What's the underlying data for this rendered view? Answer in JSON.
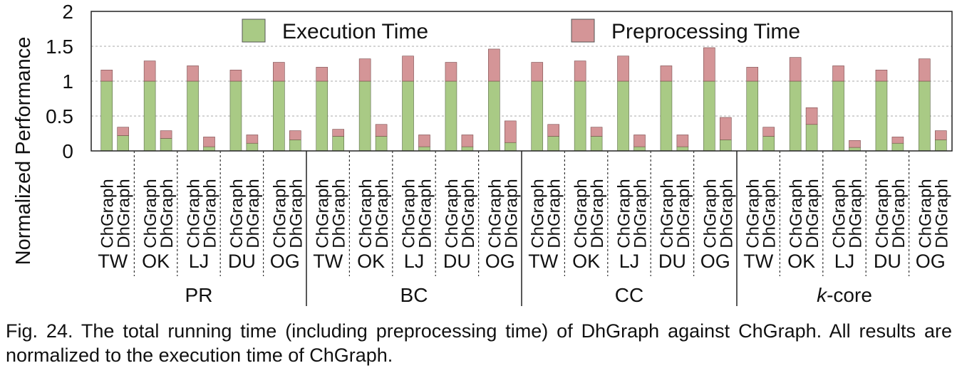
{
  "chart_data": {
    "type": "bar",
    "stacked": true,
    "ylabel": "Normalized Performance",
    "ylim": [
      0,
      2
    ],
    "yticks": [
      "0",
      "0.5",
      "1",
      "1.5",
      "2"
    ],
    "grid": "horizontal dashed at 0.5, 1, 1.5",
    "legend_position": "top",
    "colors": {
      "execution": "#a9ca85",
      "preprocessing": "#d49597"
    },
    "series_names": [
      "Execution Time",
      "Preprocessing Time"
    ],
    "algorithms": [
      "PR",
      "BC",
      "CC",
      "k-core"
    ],
    "datasets": [
      "TW",
      "OK",
      "LJ",
      "DU",
      "OG"
    ],
    "systems": [
      "ChGraph",
      "DhGraph"
    ],
    "groups": [
      {
        "algorithm": "PR",
        "bars": [
          {
            "dataset": "TW",
            "system": "ChGraph",
            "execution": 1.0,
            "preprocessing": 0.16
          },
          {
            "dataset": "TW",
            "system": "DhGraph",
            "execution": 0.22,
            "preprocessing": 0.12
          },
          {
            "dataset": "OK",
            "system": "ChGraph",
            "execution": 1.0,
            "preprocessing": 0.29
          },
          {
            "dataset": "OK",
            "system": "DhGraph",
            "execution": 0.18,
            "preprocessing": 0.11
          },
          {
            "dataset": "LJ",
            "system": "ChGraph",
            "execution": 1.0,
            "preprocessing": 0.22
          },
          {
            "dataset": "LJ",
            "system": "DhGraph",
            "execution": 0.06,
            "preprocessing": 0.14
          },
          {
            "dataset": "DU",
            "system": "ChGraph",
            "execution": 1.0,
            "preprocessing": 0.16
          },
          {
            "dataset": "DU",
            "system": "DhGraph",
            "execution": 0.11,
            "preprocessing": 0.12
          },
          {
            "dataset": "OG",
            "system": "ChGraph",
            "execution": 1.0,
            "preprocessing": 0.27
          },
          {
            "dataset": "OG",
            "system": "DhGraph",
            "execution": 0.16,
            "preprocessing": 0.13
          }
        ]
      },
      {
        "algorithm": "BC",
        "bars": [
          {
            "dataset": "TW",
            "system": "ChGraph",
            "execution": 1.0,
            "preprocessing": 0.2
          },
          {
            "dataset": "TW",
            "system": "DhGraph",
            "execution": 0.21,
            "preprocessing": 0.1
          },
          {
            "dataset": "OK",
            "system": "ChGraph",
            "execution": 1.0,
            "preprocessing": 0.32
          },
          {
            "dataset": "OK",
            "system": "DhGraph",
            "execution": 0.21,
            "preprocessing": 0.17
          },
          {
            "dataset": "LJ",
            "system": "ChGraph",
            "execution": 1.0,
            "preprocessing": 0.36
          },
          {
            "dataset": "LJ",
            "system": "DhGraph",
            "execution": 0.06,
            "preprocessing": 0.17
          },
          {
            "dataset": "DU",
            "system": "ChGraph",
            "execution": 1.0,
            "preprocessing": 0.27
          },
          {
            "dataset": "DU",
            "system": "DhGraph",
            "execution": 0.06,
            "preprocessing": 0.17
          },
          {
            "dataset": "OG",
            "system": "ChGraph",
            "execution": 1.0,
            "preprocessing": 0.46
          },
          {
            "dataset": "OG",
            "system": "DhGraph",
            "execution": 0.12,
            "preprocessing": 0.31
          }
        ]
      },
      {
        "algorithm": "CC",
        "bars": [
          {
            "dataset": "TW",
            "system": "ChGraph",
            "execution": 1.0,
            "preprocessing": 0.27
          },
          {
            "dataset": "TW",
            "system": "DhGraph",
            "execution": 0.21,
            "preprocessing": 0.17
          },
          {
            "dataset": "OK",
            "system": "ChGraph",
            "execution": 1.0,
            "preprocessing": 0.29
          },
          {
            "dataset": "OK",
            "system": "DhGraph",
            "execution": 0.21,
            "preprocessing": 0.13
          },
          {
            "dataset": "LJ",
            "system": "ChGraph",
            "execution": 1.0,
            "preprocessing": 0.36
          },
          {
            "dataset": "LJ",
            "system": "DhGraph",
            "execution": 0.06,
            "preprocessing": 0.17
          },
          {
            "dataset": "DU",
            "system": "ChGraph",
            "execution": 1.0,
            "preprocessing": 0.22
          },
          {
            "dataset": "DU",
            "system": "DhGraph",
            "execution": 0.06,
            "preprocessing": 0.17
          },
          {
            "dataset": "OG",
            "system": "ChGraph",
            "execution": 1.0,
            "preprocessing": 0.48
          },
          {
            "dataset": "OG",
            "system": "DhGraph",
            "execution": 0.16,
            "preprocessing": 0.32
          }
        ]
      },
      {
        "algorithm": "k-core",
        "bars": [
          {
            "dataset": "TW",
            "system": "ChGraph",
            "execution": 1.0,
            "preprocessing": 0.2
          },
          {
            "dataset": "TW",
            "system": "DhGraph",
            "execution": 0.21,
            "preprocessing": 0.13
          },
          {
            "dataset": "OK",
            "system": "ChGraph",
            "execution": 1.0,
            "preprocessing": 0.34
          },
          {
            "dataset": "OK",
            "system": "DhGraph",
            "execution": 0.38,
            "preprocessing": 0.24
          },
          {
            "dataset": "LJ",
            "system": "ChGraph",
            "execution": 1.0,
            "preprocessing": 0.22
          },
          {
            "dataset": "LJ",
            "system": "DhGraph",
            "execution": 0.05,
            "preprocessing": 0.1
          },
          {
            "dataset": "DU",
            "system": "ChGraph",
            "execution": 1.0,
            "preprocessing": 0.16
          },
          {
            "dataset": "DU",
            "system": "DhGraph",
            "execution": 0.11,
            "preprocessing": 0.09
          },
          {
            "dataset": "OG",
            "system": "ChGraph",
            "execution": 1.0,
            "preprocessing": 0.32
          },
          {
            "dataset": "OG",
            "system": "DhGraph",
            "execution": 0.16,
            "preprocessing": 0.13
          }
        ]
      }
    ]
  },
  "caption": "Fig. 24. The total running time (including preprocessing time) of DhGraph against ChGraph. All results are normalized to the execution time of ChGraph."
}
